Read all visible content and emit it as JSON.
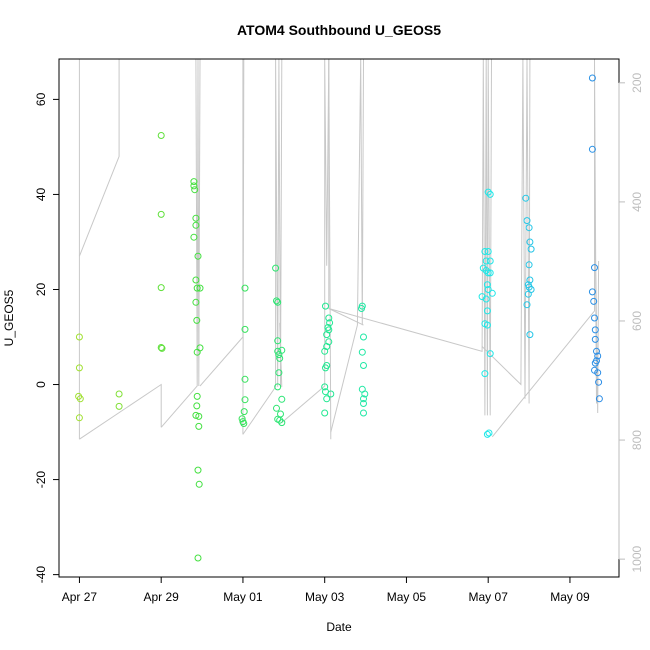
{
  "chart_data": {
    "type": "scatter",
    "title": "ATOM4 Southbound U_GEOS5",
    "xlabel": "Date",
    "ylabel": "U_GEOS5",
    "x_unit": "days",
    "x_ticks": [
      {
        "x": 0,
        "label": "Apr 27"
      },
      {
        "x": 2,
        "label": "Apr 29"
      },
      {
        "x": 4,
        "label": "May 01"
      },
      {
        "x": 6,
        "label": "May 03"
      },
      {
        "x": 8,
        "label": "May 05"
      },
      {
        "x": 10,
        "label": "May 07"
      },
      {
        "x": 12,
        "label": "May 09"
      }
    ],
    "xlim": [
      -0.5,
      13.2
    ],
    "ylim": [
      -40.5,
      68.5
    ],
    "y_ticks": [
      -40,
      -20,
      0,
      20,
      40,
      60
    ],
    "y2_label": "",
    "y2_ticks": [
      200,
      400,
      600,
      800,
      1000
    ],
    "y2lim": [
      1030,
      160
    ],
    "series": [
      {
        "color_from": "#9ee629",
        "color_to": "#2a8ce6",
        "points": [
          [
            0.0,
            10.0
          ],
          [
            0.0,
            3.5
          ],
          [
            -0.02,
            -2.5
          ],
          [
            0.02,
            -3.0
          ],
          [
            0.0,
            -7.0
          ],
          [
            0.97,
            -2.0
          ],
          [
            0.97,
            -4.6
          ],
          [
            2.0,
            52.4
          ],
          [
            2.0,
            35.8
          ],
          [
            2.0,
            20.4
          ],
          [
            2.0,
            7.8
          ],
          [
            2.02,
            7.6
          ],
          [
            2.8,
            42.7
          ],
          [
            2.8,
            41.8
          ],
          [
            2.82,
            41.0
          ],
          [
            2.85,
            35.0
          ],
          [
            2.85,
            33.5
          ],
          [
            2.8,
            31.0
          ],
          [
            2.85,
            22.0
          ],
          [
            2.9,
            27.0
          ],
          [
            2.88,
            20.3
          ],
          [
            2.95,
            20.3
          ],
          [
            2.85,
            17.3
          ],
          [
            2.87,
            13.5
          ],
          [
            2.88,
            6.8
          ],
          [
            2.95,
            7.7
          ],
          [
            2.88,
            -2.5
          ],
          [
            2.87,
            -4.5
          ],
          [
            2.85,
            -6.5
          ],
          [
            2.92,
            -6.7
          ],
          [
            2.92,
            -8.8
          ],
          [
            2.9,
            -18.0
          ],
          [
            2.93,
            -21.0
          ],
          [
            2.9,
            -36.5
          ],
          [
            4.05,
            20.3
          ],
          [
            4.05,
            11.6
          ],
          [
            4.05,
            1.1
          ],
          [
            4.05,
            -3.2
          ],
          [
            4.03,
            -5.7
          ],
          [
            3.98,
            -7.2
          ],
          [
            4.0,
            -7.8
          ],
          [
            4.02,
            -8.2
          ],
          [
            4.8,
            24.5
          ],
          [
            4.82,
            17.6
          ],
          [
            4.85,
            17.3
          ],
          [
            4.85,
            9.2
          ],
          [
            4.85,
            7.0
          ],
          [
            4.88,
            6.3
          ],
          [
            4.95,
            7.2
          ],
          [
            4.9,
            5.5
          ],
          [
            4.88,
            2.5
          ],
          [
            4.85,
            -0.5
          ],
          [
            4.95,
            -3.1
          ],
          [
            4.82,
            -5.0
          ],
          [
            4.85,
            -7.3
          ],
          [
            4.9,
            -7.5
          ],
          [
            4.95,
            -8.0
          ],
          [
            4.92,
            -6.2
          ],
          [
            6.02,
            16.5
          ],
          [
            6.1,
            14.0
          ],
          [
            6.12,
            13.0
          ],
          [
            6.08,
            12.0
          ],
          [
            6.1,
            11.5
          ],
          [
            6.05,
            10.5
          ],
          [
            6.1,
            9.0
          ],
          [
            6.05,
            8.0
          ],
          [
            6.0,
            7.0
          ],
          [
            6.05,
            4.0
          ],
          [
            6.02,
            3.5
          ],
          [
            6.0,
            -0.5
          ],
          [
            6.02,
            -1.5
          ],
          [
            6.15,
            -2.0
          ],
          [
            6.05,
            -3.0
          ],
          [
            6.0,
            -6.0
          ],
          [
            6.92,
            16.5
          ],
          [
            6.9,
            16.0
          ],
          [
            6.95,
            10.0
          ],
          [
            6.92,
            6.8
          ],
          [
            6.95,
            4.0
          ],
          [
            6.92,
            -1.0
          ],
          [
            6.98,
            -2.0
          ],
          [
            6.95,
            -3.0
          ],
          [
            6.95,
            -4.0
          ],
          [
            6.95,
            -6.0
          ],
          [
            9.92,
            28.0
          ],
          [
            9.95,
            26.0
          ],
          [
            10.0,
            28.0
          ],
          [
            10.05,
            26.0
          ],
          [
            9.88,
            24.5
          ],
          [
            9.95,
            24.0
          ],
          [
            10.0,
            23.5
          ],
          [
            10.05,
            23.5
          ],
          [
            9.98,
            21.0
          ],
          [
            10.0,
            20.0
          ],
          [
            9.85,
            18.5
          ],
          [
            9.95,
            18.0
          ],
          [
            9.98,
            15.5
          ],
          [
            9.92,
            12.8
          ],
          [
            9.98,
            12.5
          ],
          [
            10.05,
            6.5
          ],
          [
            9.92,
            2.3
          ],
          [
            9.98,
            -10.5
          ],
          [
            10.02,
            -10.2
          ],
          [
            10.0,
            40.5
          ],
          [
            10.05,
            40.0
          ],
          [
            10.1,
            19.2
          ],
          [
            10.92,
            39.2
          ],
          [
            10.95,
            34.5
          ],
          [
            11.0,
            33.0
          ],
          [
            11.02,
            30.0
          ],
          [
            11.05,
            28.5
          ],
          [
            11.0,
            25.2
          ],
          [
            11.02,
            22.0
          ],
          [
            10.98,
            21.0
          ],
          [
            11.0,
            20.5
          ],
          [
            11.05,
            20.0
          ],
          [
            10.98,
            19.0
          ],
          [
            10.95,
            16.8
          ],
          [
            11.02,
            10.5
          ],
          [
            12.55,
            64.5
          ],
          [
            12.55,
            49.5
          ],
          [
            12.6,
            24.6
          ],
          [
            12.55,
            19.5
          ],
          [
            12.58,
            17.5
          ],
          [
            12.6,
            14.0
          ],
          [
            12.62,
            11.5
          ],
          [
            12.62,
            9.5
          ],
          [
            12.65,
            7.0
          ],
          [
            12.68,
            6.0
          ],
          [
            12.65,
            5.0
          ],
          [
            12.62,
            4.5
          ],
          [
            12.6,
            3.0
          ],
          [
            12.68,
            2.5
          ],
          [
            12.7,
            0.5
          ],
          [
            12.72,
            -3.0
          ]
        ]
      }
    ]
  }
}
